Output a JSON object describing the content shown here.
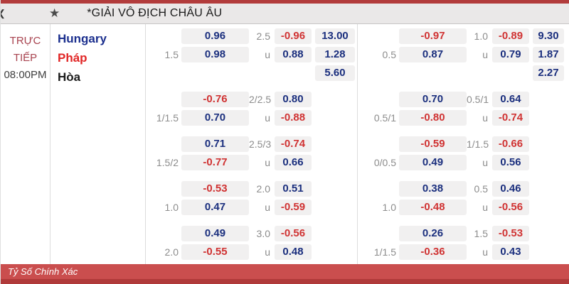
{
  "header": {
    "corner_glyph": "❮",
    "star_icon": "★",
    "title": "*GIẢI VÔ ĐỊCH CHÂU ÂU"
  },
  "match": {
    "status_line1": "TRỰC",
    "status_line2": "TIẾP",
    "time": "08:00PM",
    "teams": [
      {
        "name": "Hungary",
        "color": "#1b2f8e"
      },
      {
        "name": "Pháp",
        "color": "#e12626"
      },
      {
        "name": "Hòa",
        "color": "#1a1a1a"
      }
    ]
  },
  "colors": {
    "positive_odds": "#1b2f7e",
    "negative_odds": "#d03333",
    "cell_background": "#f1f0f0",
    "label_gray": "#8c8c8c",
    "live_text": "#a8434f",
    "top_line": "#b23c3c",
    "footer_bar": "#ca4e4e"
  },
  "odds_grid": {
    "sections": [
      {
        "name": "left",
        "groups": [
          {
            "rows": [
              {
                "hdp_label": "",
                "hdp": "0.96",
                "ou_label": "2.5",
                "ou": "-0.96",
                "x12": "13.00"
              },
              {
                "hdp_label": "1.5",
                "hdp": "0.98",
                "ou_label": "u",
                "ou": "0.88",
                "x12": "1.28"
              },
              {
                "hdp_label": "",
                "hdp": null,
                "ou_label": "",
                "ou": null,
                "x12": "5.60"
              }
            ]
          },
          {
            "rows": [
              {
                "hdp_label": "",
                "hdp": "-0.76",
                "ou_label": "2/2.5",
                "ou": "0.80",
                "x12": null
              },
              {
                "hdp_label": "1/1.5",
                "hdp": "0.70",
                "ou_label": "u",
                "ou": "-0.88",
                "x12": null
              }
            ]
          },
          {
            "rows": [
              {
                "hdp_label": "",
                "hdp": "0.71",
                "ou_label": "2.5/3",
                "ou": "-0.74",
                "x12": null
              },
              {
                "hdp_label": "1.5/2",
                "hdp": "-0.77",
                "ou_label": "u",
                "ou": "0.66",
                "x12": null
              }
            ]
          },
          {
            "rows": [
              {
                "hdp_label": "",
                "hdp": "-0.53",
                "ou_label": "2.0",
                "ou": "0.51",
                "x12": null
              },
              {
                "hdp_label": "1.0",
                "hdp": "0.47",
                "ou_label": "u",
                "ou": "-0.59",
                "x12": null
              }
            ]
          },
          {
            "rows": [
              {
                "hdp_label": "",
                "hdp": "0.49",
                "ou_label": "3.0",
                "ou": "-0.56",
                "x12": null
              },
              {
                "hdp_label": "2.0",
                "hdp": "-0.55",
                "ou_label": "u",
                "ou": "0.48",
                "x12": null
              }
            ]
          }
        ]
      },
      {
        "name": "right",
        "groups": [
          {
            "rows": [
              {
                "hdp_label": "",
                "hdp": "-0.97",
                "ou_label": "1.0",
                "ou": "-0.89",
                "x12": "9.30"
              },
              {
                "hdp_label": "0.5",
                "hdp": "0.87",
                "ou_label": "u",
                "ou": "0.79",
                "x12": "1.87"
              },
              {
                "hdp_label": "",
                "hdp": null,
                "ou_label": "",
                "ou": null,
                "x12": "2.27"
              }
            ]
          },
          {
            "rows": [
              {
                "hdp_label": "",
                "hdp": "0.70",
                "ou_label": "0.5/1",
                "ou": "0.64",
                "x12": null
              },
              {
                "hdp_label": "0.5/1",
                "hdp": "-0.80",
                "ou_label": "u",
                "ou": "-0.74",
                "x12": null
              }
            ]
          },
          {
            "rows": [
              {
                "hdp_label": "",
                "hdp": "-0.59",
                "ou_label": "1/1.5",
                "ou": "-0.66",
                "x12": null
              },
              {
                "hdp_label": "0/0.5",
                "hdp": "0.49",
                "ou_label": "u",
                "ou": "0.56",
                "x12": null
              }
            ]
          },
          {
            "rows": [
              {
                "hdp_label": "",
                "hdp": "0.38",
                "ou_label": "0.5",
                "ou": "0.46",
                "x12": null
              },
              {
                "hdp_label": "1.0",
                "hdp": "-0.48",
                "ou_label": "u",
                "ou": "-0.56",
                "x12": null
              }
            ]
          },
          {
            "rows": [
              {
                "hdp_label": "",
                "hdp": "0.26",
                "ou_label": "1.5",
                "ou": "-0.53",
                "x12": null
              },
              {
                "hdp_label": "1/1.5",
                "hdp": "-0.36",
                "ou_label": "u",
                "ou": "0.43",
                "x12": null
              }
            ]
          }
        ]
      }
    ]
  },
  "footer": {
    "label": "Tỷ Số Chính Xác"
  }
}
